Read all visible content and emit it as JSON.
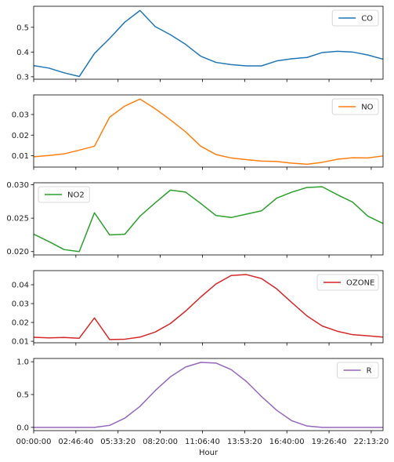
{
  "chart_data": {
    "type": "line",
    "xlabel": "Hour",
    "x_tick_labels": [
      "00:00:00",
      "02:46:40",
      "05:33:20",
      "08:20:00",
      "11:06:40",
      "13:53:20",
      "16:40:00",
      "19:26:40",
      "22:13:20"
    ],
    "x": [
      "00:00",
      "01:00",
      "02:00",
      "03:00",
      "04:00",
      "05:00",
      "06:00",
      "07:00",
      "08:00",
      "09:00",
      "10:00",
      "11:00",
      "12:00",
      "13:00",
      "14:00",
      "15:00",
      "16:00",
      "17:00",
      "18:00",
      "19:00",
      "20:00",
      "21:00",
      "22:00",
      "23:00"
    ],
    "panels": [
      {
        "name": "CO",
        "color": "#1f77b4",
        "ylim": [
          0.29,
          0.585
        ],
        "yticks": [
          0.3,
          0.4,
          0.5
        ],
        "ytick_labels": [
          "0.3",
          "0.4",
          "0.5"
        ],
        "legend_loc": "upper right",
        "values": [
          0.345,
          0.335,
          0.316,
          0.301,
          0.394,
          0.455,
          0.521,
          0.568,
          0.503,
          0.47,
          0.431,
          0.383,
          0.358,
          0.349,
          0.344,
          0.344,
          0.364,
          0.373,
          0.378,
          0.398,
          0.403,
          0.4,
          0.388,
          0.371
        ]
      },
      {
        "name": "NO",
        "color": "#ff7f0e",
        "ylim": [
          0.0045,
          0.0395
        ],
        "yticks": [
          0.01,
          0.02,
          0.03
        ],
        "ytick_labels": [
          "0.01",
          "0.02",
          "0.03"
        ],
        "legend_loc": "upper right",
        "values": [
          0.0095,
          0.0101,
          0.0109,
          0.0127,
          0.0146,
          0.0287,
          0.0341,
          0.0375,
          0.0328,
          0.0274,
          0.0216,
          0.0146,
          0.0106,
          0.0089,
          0.0081,
          0.0074,
          0.0072,
          0.0064,
          0.0059,
          0.0068,
          0.0083,
          0.009,
          0.0089,
          0.0099
        ]
      },
      {
        "name": "NO2",
        "color": "#2ca02c",
        "ylim": [
          0.0195,
          0.0303
        ],
        "yticks": [
          0.02,
          0.025,
          0.03
        ],
        "ytick_labels": [
          "0.020",
          "0.025",
          "0.030"
        ],
        "legend_loc": "upper left",
        "values": [
          0.0226,
          0.0215,
          0.0203,
          0.02,
          0.0258,
          0.0225,
          0.0226,
          0.0253,
          0.0273,
          0.0292,
          0.0289,
          0.0272,
          0.0254,
          0.0251,
          0.0256,
          0.0261,
          0.028,
          0.0289,
          0.0296,
          0.0297,
          0.0285,
          0.0274,
          0.0253,
          0.0242
        ]
      },
      {
        "name": "OZONE",
        "color": "#d62728",
        "ylim": [
          0.0092,
          0.0475
        ],
        "yticks": [
          0.01,
          0.02,
          0.03,
          0.04
        ],
        "ytick_labels": [
          "0.01",
          "0.02",
          "0.03",
          "0.04"
        ],
        "legend_loc": "upper right",
        "values": [
          0.0121,
          0.0118,
          0.012,
          0.0116,
          0.0224,
          0.0109,
          0.0111,
          0.0122,
          0.0149,
          0.0194,
          0.026,
          0.0335,
          0.0404,
          0.0449,
          0.0454,
          0.0433,
          0.0378,
          0.0305,
          0.0234,
          0.0181,
          0.0153,
          0.0135,
          0.0129,
          0.0122
        ]
      },
      {
        "name": "R",
        "color": "#9467bd",
        "ylim": [
          -0.05,
          1.05
        ],
        "yticks": [
          0,
          0.5,
          1
        ],
        "ytick_labels": [
          "0.0",
          "0.5",
          "1.0"
        ],
        "legend_loc": "upper right",
        "values": [
          0,
          0,
          0,
          0,
          0,
          0.03,
          0.14,
          0.32,
          0.56,
          0.77,
          0.92,
          0.99,
          0.98,
          0.88,
          0.7,
          0.47,
          0.26,
          0.1,
          0.02,
          0,
          0,
          0,
          0,
          0
        ]
      }
    ]
  }
}
